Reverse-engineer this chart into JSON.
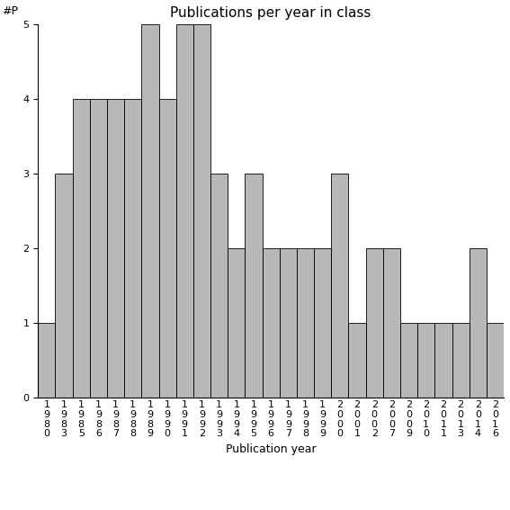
{
  "years": [
    "1980",
    "1983",
    "1985",
    "1986",
    "1987",
    "1988",
    "1989",
    "1990",
    "1991",
    "1992",
    "1993",
    "1994",
    "1995",
    "1996",
    "1997",
    "1998",
    "1999",
    "2000",
    "2001",
    "2002",
    "2007",
    "2009",
    "2010",
    "2011",
    "2013",
    "2014",
    "2016"
  ],
  "values": [
    1,
    3,
    4,
    4,
    4,
    4,
    5,
    4,
    5,
    5,
    3,
    2,
    3,
    2,
    2,
    2,
    2,
    3,
    1,
    2,
    2,
    1,
    1,
    1,
    1,
    2,
    1
  ],
  "title": "Publications per year in class",
  "xlabel": "Publication year",
  "ylabel": "#P",
  "bar_color": "#b8b8b8",
  "bar_edge_color": "#000000",
  "ylim": [
    0,
    5
  ],
  "yticks": [
    0,
    1,
    2,
    3,
    4,
    5
  ],
  "background_color": "#ffffff",
  "title_fontsize": 11,
  "label_fontsize": 9,
  "tick_fontsize": 8
}
